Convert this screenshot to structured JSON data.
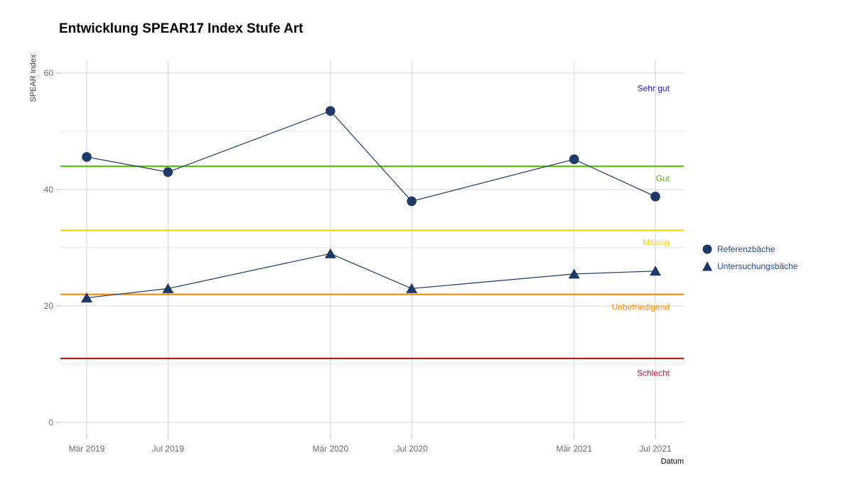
{
  "title": "Entwicklung SPEAR17 Index Stufe Art",
  "chart_data": {
    "type": "line",
    "title": "Entwicklung SPEAR17 Index Stufe Art",
    "xlabel": "Datum",
    "ylabel": "SPEAR Index",
    "categories": [
      "Mär 2019",
      "Jul 2019",
      "Mär 2020",
      "Jul 2020",
      "Mär 2021",
      "Jul 2021"
    ],
    "x_months": [
      0,
      4,
      12,
      16,
      24,
      28
    ],
    "ylim": [
      0,
      60
    ],
    "y_major_ticks": [
      0,
      20,
      40,
      60
    ],
    "y_minor_ticks": [
      10,
      30,
      50
    ],
    "grid": "horizontal major+minor, vertical at date ticks, light gray on white",
    "legend_position": "right",
    "series": [
      {
        "name": "Referenzbäche",
        "marker": "circle",
        "color": "#1c3968",
        "values": [
          45.6,
          43.0,
          53.5,
          38.0,
          45.2,
          38.8
        ]
      },
      {
        "name": "Untersuchungsbäche",
        "marker": "triangle",
        "color": "#1c3968",
        "values": [
          21.4,
          23.0,
          29.0,
          23.0,
          25.5,
          26.0
        ]
      }
    ],
    "quality_bands": [
      {
        "label": "Sehr gut",
        "line_value": null,
        "label_value": 57.4,
        "color": "#2121dc",
        "text_color": "#2121dc"
      },
      {
        "label": "Gut",
        "line_value": 44,
        "label_value": 41.9,
        "color": "#55c000",
        "text_color": "#55c000"
      },
      {
        "label": "Mässig",
        "line_value": 33,
        "label_value": 30.9,
        "color": "#ffd300",
        "text_color": "#ffd300"
      },
      {
        "label": "Unbefriedigend",
        "line_value": 22,
        "label_value": 19.8,
        "color": "#ff8c00",
        "text_color": "#ff8c00"
      },
      {
        "label": "Schlecht",
        "line_value": 11,
        "label_value": 8.5,
        "color": "#b01010",
        "text_color": "#cc1133"
      }
    ]
  },
  "colors": {
    "background": "#ffffff",
    "grid_major": "#d6d6d6",
    "grid_minor": "#e4e4e4",
    "tick": "#b8b8b8",
    "axis_text": "#6e6e6e",
    "series": "#1c3968",
    "legend_text": "#27479e",
    "title_text": "#000000"
  }
}
